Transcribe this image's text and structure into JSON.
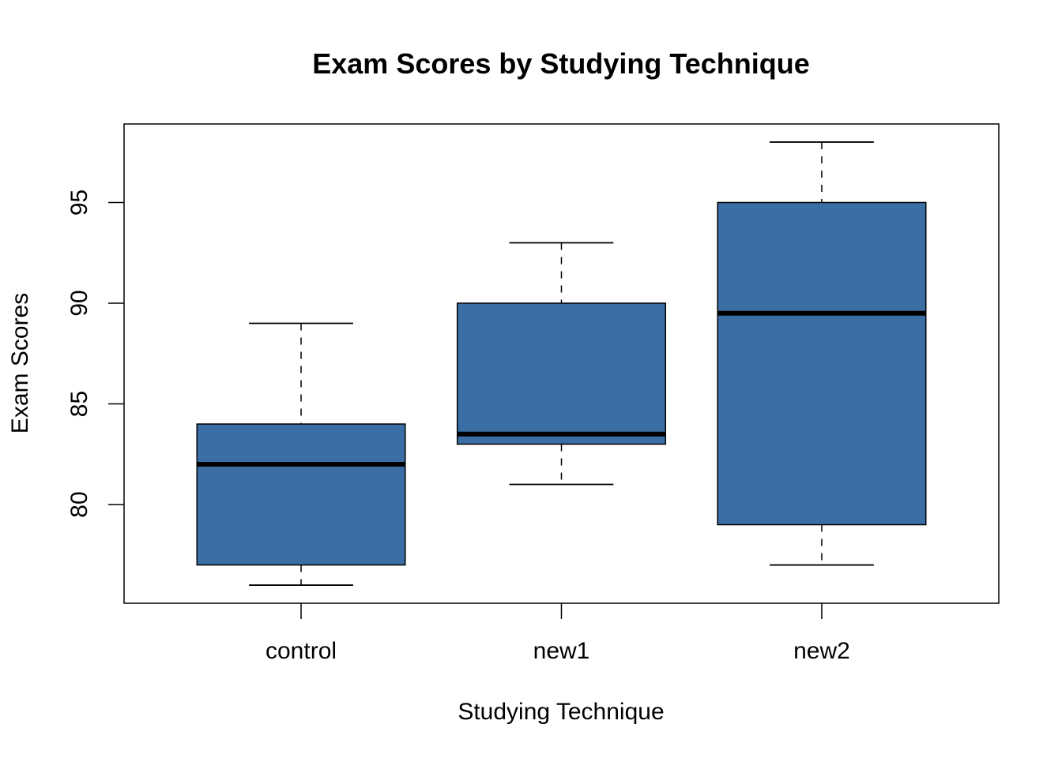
{
  "chart_data": {
    "type": "boxplot",
    "title": "Exam Scores by Studying Technique",
    "xlabel": "Studying Technique",
    "ylabel": "Exam Scores",
    "categories": [
      "control",
      "new1",
      "new2"
    ],
    "boxes": [
      {
        "category": "control",
        "whisker_low": 76,
        "q1": 77,
        "median": 82,
        "q3": 84,
        "whisker_high": 89
      },
      {
        "category": "new1",
        "whisker_low": 81,
        "q1": 83,
        "median": 83.5,
        "q3": 90,
        "whisker_high": 93
      },
      {
        "category": "new2",
        "whisker_low": 77,
        "q1": 79,
        "median": 89.5,
        "q3": 95,
        "whisker_high": 98
      }
    ],
    "yticks": [
      "80",
      "85",
      "90",
      "95"
    ],
    "ylim": [
      75.1,
      98.9
    ],
    "grid": false,
    "box_color": "#3A6EA5",
    "median_color": "#000000"
  }
}
